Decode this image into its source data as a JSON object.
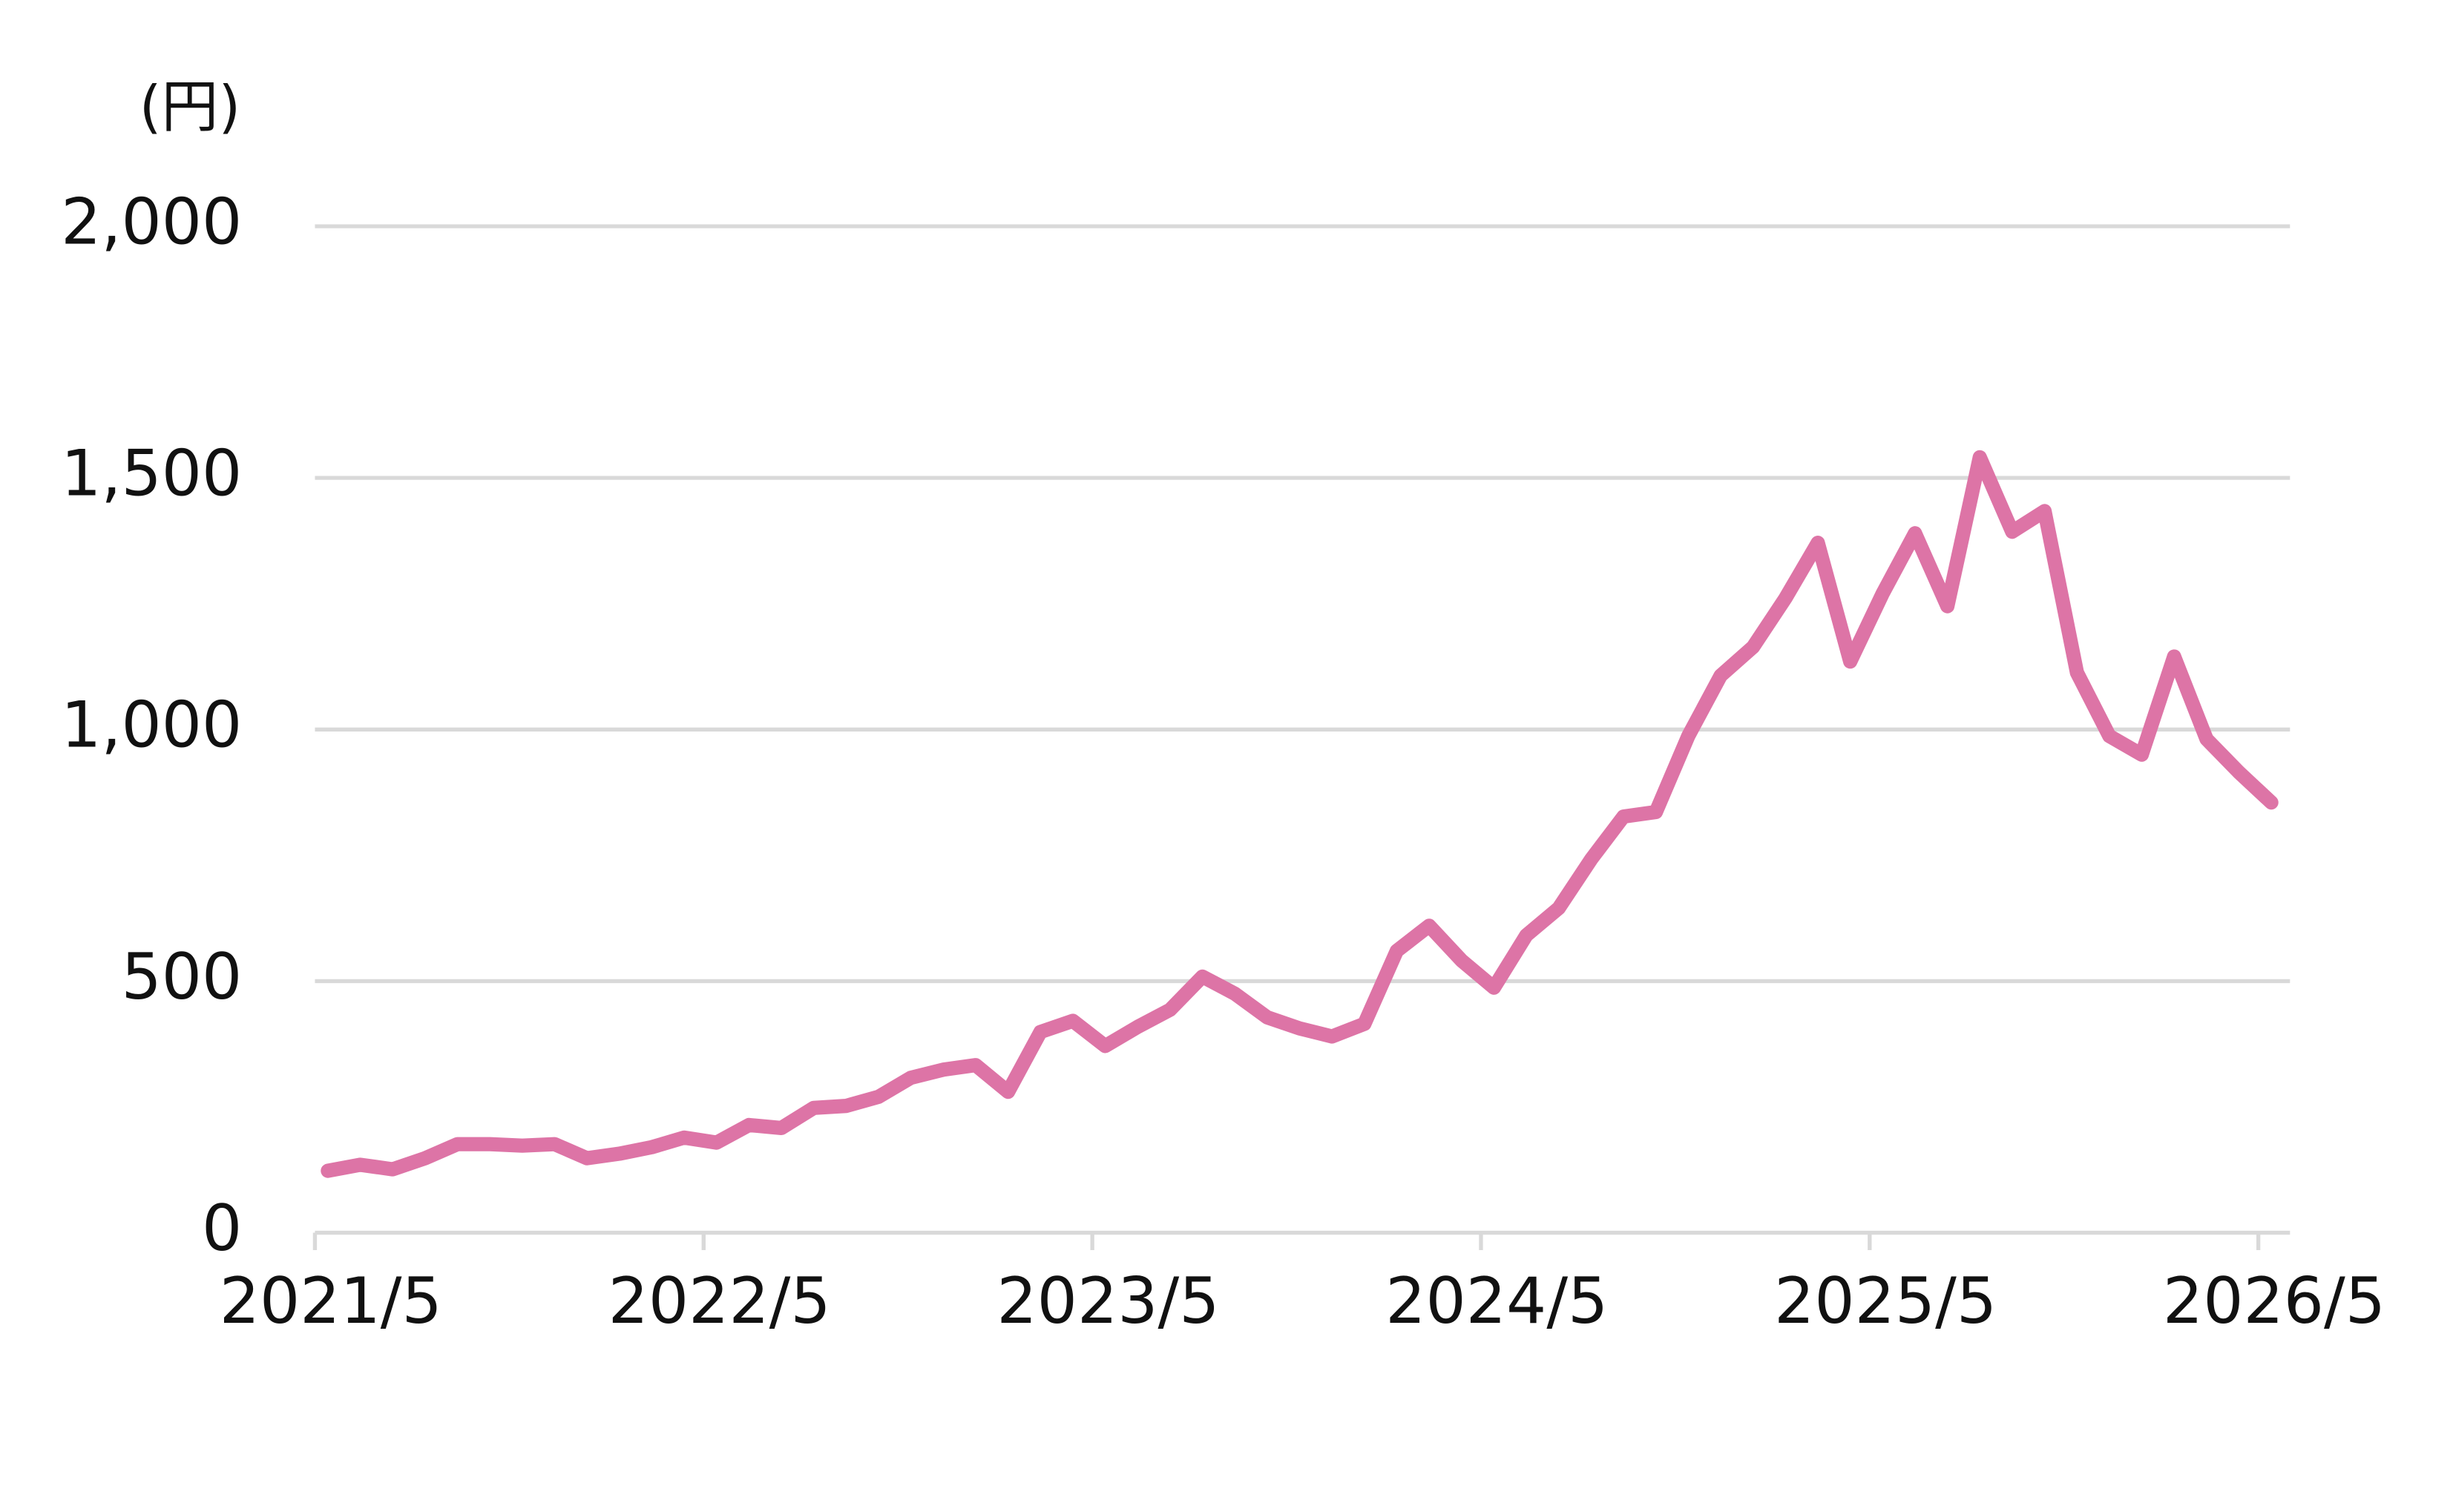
{
  "chart_data": {
    "type": "line",
    "y_unit_label": "(円)",
    "x": [
      "2021/5",
      "2021/6",
      "2021/7",
      "2021/8",
      "2021/9",
      "2021/10",
      "2021/11",
      "2021/12",
      "2022/1",
      "2022/2",
      "2022/3",
      "2022/4",
      "2022/5",
      "2022/6",
      "2022/7",
      "2022/8",
      "2022/9",
      "2022/10",
      "2022/11",
      "2022/12",
      "2023/1",
      "2023/2",
      "2023/3",
      "2023/4",
      "2023/5",
      "2023/6",
      "2023/7",
      "2023/8",
      "2023/9",
      "2023/10",
      "2023/11",
      "2023/12",
      "2024/1",
      "2024/2",
      "2024/3",
      "2024/4",
      "2024/5",
      "2024/6",
      "2024/7",
      "2024/8",
      "2024/9",
      "2024/10",
      "2024/11",
      "2024/12",
      "2025/1",
      "2025/2",
      "2025/3",
      "2025/4",
      "2025/5",
      "2025/6",
      "2025/7",
      "2025/8",
      "2025/9",
      "2025/10",
      "2025/11",
      "2025/12",
      "2026/1",
      "2026/2",
      "2026/3",
      "2026/4",
      "2026/5"
    ],
    "series": [
      {
        "color": "#dd74a6",
        "values": [
          123,
          135,
          126,
          148,
          176,
          176,
          173,
          176,
          148,
          157,
          170,
          189,
          179,
          214,
          208,
          248,
          252,
          270,
          308,
          324,
          333,
          280,
          399,
          421,
          371,
          409,
          443,
          509,
          475,
          428,
          406,
          390,
          415,
          560,
          610,
          541,
          487,
          591,
          645,
          742,
          827,
          836,
          987,
          1107,
          1164,
          1261,
          1371,
          1135,
          1270,
          1390,
          1245,
          1541,
          1393,
          1434,
          1113,
          987,
          950,
          1145,
          981,
          915,
          855
        ]
      }
    ],
    "xticks": [
      "2021/5",
      "2022/5",
      "2023/5",
      "2024/5",
      "2025/5",
      "2026/5"
    ],
    "ylim": [
      0,
      2000
    ],
    "yticks": [
      0,
      500,
      {
        "value": 1000,
        "label": "1,000"
      },
      {
        "value": 1500,
        "label": "1,500"
      },
      {
        "value": 2000,
        "label": "2,000"
      }
    ],
    "grid": true
  }
}
